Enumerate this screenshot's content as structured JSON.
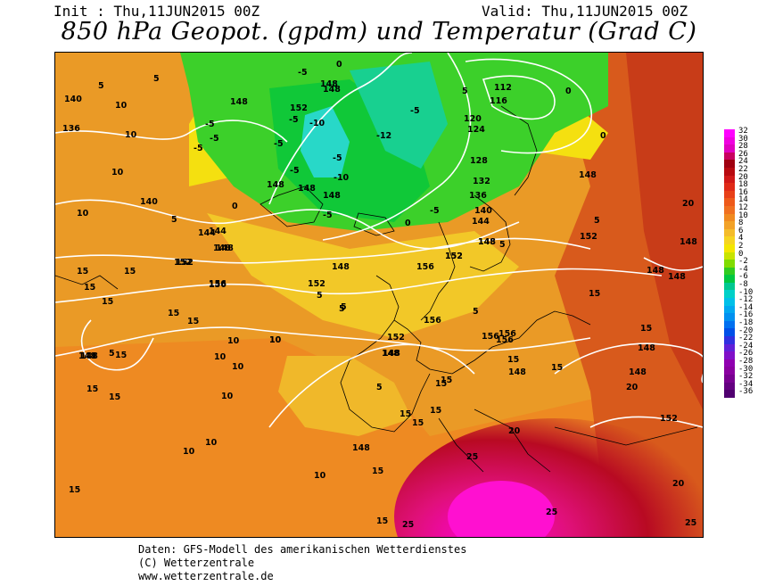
{
  "header": {
    "init_label": "Init : Thu,11JUN2015 00Z",
    "valid_label": "Valid: Thu,11JUN2015 00Z",
    "title": "850 hPa Geopot. (gpdm) und Temperatur (Grad C)"
  },
  "footer": {
    "line1": "Daten: GFS-Modell des amerikanischen Wetterdienstes",
    "line2": "(C) Wetterzentrale",
    "line3": "www.wetterzentrale.de"
  },
  "scale": {
    "labels": [
      "32",
      "30",
      "28",
      "26",
      "24",
      "22",
      "20",
      "18",
      "16",
      "14",
      "12",
      "10",
      "8",
      "6",
      "4",
      "2",
      "0",
      "-2",
      "-4",
      "-6",
      "-8",
      "-10",
      "-12",
      "-14",
      "-16",
      "-18",
      "-20",
      "-22",
      "-24",
      "-26",
      "-28",
      "-30",
      "-32",
      "-34",
      "-36"
    ],
    "colors": [
      "#ff00ff",
      "#f000e0",
      "#e000c0",
      "#c80060",
      "#a00010",
      "#b80a10",
      "#d01818",
      "#e02a18",
      "#e84018",
      "#ee5a1a",
      "#f07020",
      "#f08a20",
      "#f2a228",
      "#f4bc2a",
      "#f6d420",
      "#f4e600",
      "#c8e400",
      "#80dc00",
      "#30cc20",
      "#00c840",
      "#00c890",
      "#00d0c8",
      "#00c0e8",
      "#00a8f0",
      "#0090f0",
      "#0070f0",
      "#0050e8",
      "#3030e0",
      "#6020d8",
      "#8010c8",
      "#9000b0",
      "#8a00a0",
      "#780090",
      "#640080",
      "#500070"
    ]
  },
  "map_labels": {
    "geopotential": [
      "140",
      "136",
      "140",
      "144",
      "148",
      "152",
      "156",
      "148",
      "152",
      "156",
      "148",
      "152",
      "156",
      "156",
      "148",
      "148",
      "148",
      "152",
      "148",
      "148",
      "152",
      "156",
      "148",
      "112",
      "116",
      "120",
      "124",
      "128",
      "132",
      "136",
      "140",
      "144",
      "148",
      "152",
      "148",
      "148",
      "148",
      "148",
      "152",
      "148",
      "148",
      "148",
      "148",
      "148",
      "152",
      "156",
      "148",
      "148",
      "144",
      "148",
      "152",
      "156",
      "148"
    ],
    "temperature": [
      "5",
      "5",
      "10",
      "10",
      "10",
      "10",
      "10",
      "10",
      "15",
      "15",
      "15",
      "15",
      "15",
      "15",
      "15",
      "15",
      "15",
      "15",
      "15",
      "15",
      "10",
      "10",
      "10",
      "10",
      "10",
      "10",
      "10",
      "-5",
      "-5",
      "-5",
      "-5",
      "-5",
      "-10",
      "-5",
      "-10",
      "-5",
      "-5",
      "-5",
      "-5",
      "-5",
      "-12",
      "0",
      "0",
      "0",
      "0",
      "0",
      "5",
      "5",
      "5",
      "5",
      "5",
      "5",
      "5",
      "15",
      "15",
      "15",
      "15",
      "15",
      "15",
      "20",
      "20",
      "20",
      "20",
      "25",
      "25",
      "25",
      "25",
      "15",
      "15",
      "5",
      "5",
      "5",
      "15"
    ]
  }
}
